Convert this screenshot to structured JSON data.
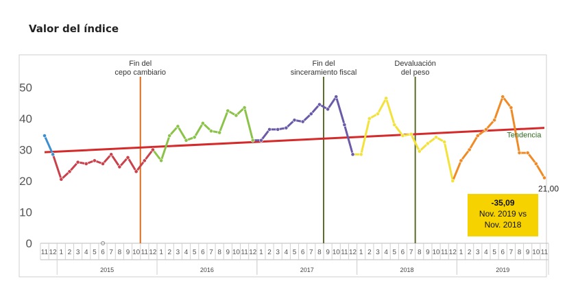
{
  "title": "Valor del índice",
  "chart_data": {
    "type": "line",
    "title": "Valor del índice",
    "ylim": [
      0,
      50
    ],
    "y_ticks": [
      0,
      10,
      20,
      30,
      40,
      50
    ],
    "months": [
      "11",
      "12",
      "1",
      "2",
      "3",
      "4",
      "5",
      "6",
      "7",
      "8",
      "9",
      "10",
      "11",
      "12",
      "1",
      "2",
      "3",
      "4",
      "5",
      "6",
      "7",
      "8",
      "9",
      "10",
      "11",
      "12",
      "1",
      "2",
      "3",
      "4",
      "5",
      "6",
      "7",
      "8",
      "9",
      "10",
      "11",
      "12",
      "1",
      "2",
      "3",
      "4",
      "5",
      "6",
      "7",
      "8",
      "9",
      "10",
      "11",
      "12",
      "1",
      "2",
      "3",
      "4",
      "5",
      "6",
      "7",
      "8",
      "9",
      "10",
      "11"
    ],
    "years": [
      {
        "label": "2015",
        "start": 2,
        "end": 13
      },
      {
        "label": "2016",
        "start": 14,
        "end": 25
      },
      {
        "label": "2017",
        "start": 26,
        "end": 37
      },
      {
        "label": "2018",
        "start": 38,
        "end": 49
      },
      {
        "label": "2019",
        "start": 50,
        "end": 60
      }
    ],
    "values": [
      34.5,
      28.5,
      20.5,
      23,
      26,
      25.5,
      26.5,
      25.5,
      28.5,
      24.5,
      27.5,
      23,
      26.5,
      30,
      26.5,
      34.5,
      37.5,
      33,
      34,
      38.5,
      36,
      35.5,
      42.5,
      41,
      43.5,
      33,
      33,
      36.5,
      36.5,
      37,
      39.5,
      39,
      41.5,
      44.5,
      43,
      47,
      38,
      28.5,
      28.5,
      40,
      41.5,
      46.5,
      38,
      34.5,
      35,
      29.5,
      32,
      34,
      32.5,
      20,
      26.5,
      30,
      34.5,
      36.5,
      39.5,
      47,
      43.5,
      29,
      29,
      25.5,
      21
    ],
    "series_colors": [
      {
        "from": 0,
        "to": 1,
        "color": "#3b8fd0"
      },
      {
        "from": 1,
        "to": 13,
        "color": "#c8414b"
      },
      {
        "from": 13,
        "to": 25,
        "color": "#8bc34a"
      },
      {
        "from": 25,
        "to": 37,
        "color": "#6a5aa8"
      },
      {
        "from": 37,
        "to": 49,
        "color": "#f2e23a"
      },
      {
        "from": 49,
        "to": 60,
        "color": "#f08a24"
      }
    ],
    "trend": {
      "label": "Tendencia",
      "start_value": 29.2,
      "end_value": 37,
      "color": "#d42a2a"
    },
    "events": [
      {
        "index": 11.5,
        "label_line1": "Fin del",
        "label_line2": "cepo cambiario",
        "color": "#e06a1c"
      },
      {
        "index": 33.5,
        "label_line1": "Fin del",
        "label_line2": "sinceramiento fiscal",
        "color": "#5a6b2a"
      },
      {
        "index": 44.5,
        "label_line1": "Devaluación",
        "label_line2": "del peso",
        "color": "#5a6b2a"
      }
    ],
    "last_value_label": "21,00",
    "callout": {
      "line1": "-35,09",
      "line2": "Nov. 2019 vs",
      "line3": "Nov. 2018",
      "color": "#f5d200"
    }
  }
}
